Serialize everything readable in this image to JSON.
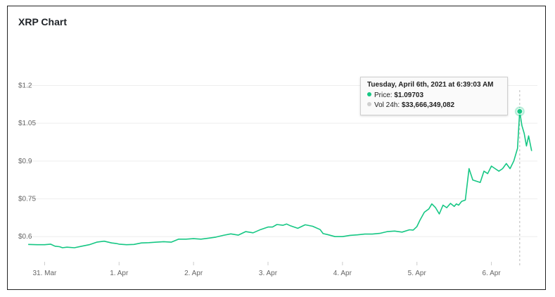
{
  "title": "XRP Chart",
  "tooltip": {
    "date": "Tuesday, April 6th, 2021 at 6:39:03 AM",
    "price_label": "Price:",
    "price_value": "$1.09703",
    "vol_label": "Vol 24h:",
    "vol_value": "$33,666,349,082",
    "price_color": "#16c784",
    "vol_color": "#cfcfcf"
  },
  "chart_data": {
    "type": "line",
    "title": "XRP Chart",
    "xlabel": "",
    "ylabel": "",
    "line_color": "#16c784",
    "grid": true,
    "ylim": [
      0.5,
      1.26
    ],
    "yticks": [
      {
        "value": 0.6,
        "label": "$0.6"
      },
      {
        "value": 0.75,
        "label": "$0.75"
      },
      {
        "value": 0.9,
        "label": "$0.9"
      },
      {
        "value": 1.05,
        "label": "$1.05"
      },
      {
        "value": 1.2,
        "label": "$1.2"
      }
    ],
    "xlim": [
      -0.24,
      6.58
    ],
    "xticks": [
      {
        "value": 0,
        "label": "31. Mar"
      },
      {
        "value": 1,
        "label": "1. Apr"
      },
      {
        "value": 2,
        "label": "2. Apr"
      },
      {
        "value": 3,
        "label": "3. Apr"
      },
      {
        "value": 4,
        "label": "4. Apr"
      },
      {
        "value": 5,
        "label": "5. Apr"
      },
      {
        "value": 6,
        "label": "6. Apr"
      }
    ],
    "highlight": {
      "x": 6.38,
      "y": 1.097
    },
    "series": [
      {
        "x": [
          -0.22,
          -0.1,
          0.0,
          0.08,
          0.14,
          0.2,
          0.24,
          0.3,
          0.4,
          0.5,
          0.6,
          0.7,
          0.8,
          0.9,
          0.96,
          1.0,
          1.1,
          1.2,
          1.3,
          1.4,
          1.5,
          1.6,
          1.7,
          1.8,
          1.9,
          2.0,
          2.1,
          2.2,
          2.3,
          2.4,
          2.5,
          2.6,
          2.7,
          2.8,
          2.9,
          3.0,
          3.06,
          3.12,
          3.2,
          3.25,
          3.3,
          3.4,
          3.5,
          3.6,
          3.7,
          3.74,
          3.8,
          3.9,
          4.0,
          4.1,
          4.2,
          4.3,
          4.4,
          4.5,
          4.6,
          4.7,
          4.8,
          4.9,
          4.95,
          5.0,
          5.04,
          5.1,
          5.16,
          5.2,
          5.25,
          5.3,
          5.35,
          5.4,
          5.45,
          5.5,
          5.53,
          5.56,
          5.6,
          5.65,
          5.7,
          5.75,
          5.8,
          5.85,
          5.9,
          5.95,
          6.0,
          6.05,
          6.1,
          6.15,
          6.2,
          6.25,
          6.3,
          6.35,
          6.38,
          6.41,
          6.44,
          6.47,
          6.5,
          6.54
        ],
        "y": [
          0.569,
          0.568,
          0.568,
          0.57,
          0.562,
          0.56,
          0.556,
          0.558,
          0.556,
          0.562,
          0.568,
          0.578,
          0.582,
          0.575,
          0.573,
          0.57,
          0.568,
          0.569,
          0.575,
          0.576,
          0.578,
          0.58,
          0.578,
          0.59,
          0.59,
          0.592,
          0.59,
          0.594,
          0.598,
          0.605,
          0.611,
          0.606,
          0.62,
          0.615,
          0.628,
          0.638,
          0.638,
          0.648,
          0.645,
          0.65,
          0.643,
          0.633,
          0.647,
          0.641,
          0.628,
          0.612,
          0.608,
          0.6,
          0.6,
          0.605,
          0.607,
          0.61,
          0.61,
          0.613,
          0.62,
          0.622,
          0.618,
          0.627,
          0.626,
          0.64,
          0.665,
          0.697,
          0.71,
          0.73,
          0.715,
          0.69,
          0.725,
          0.715,
          0.732,
          0.72,
          0.73,
          0.725,
          0.74,
          0.745,
          0.87,
          0.825,
          0.82,
          0.815,
          0.86,
          0.85,
          0.88,
          0.87,
          0.86,
          0.87,
          0.89,
          0.87,
          0.9,
          0.95,
          1.097,
          1.04,
          1.01,
          0.96,
          1.0,
          0.94
        ]
      }
    ]
  }
}
